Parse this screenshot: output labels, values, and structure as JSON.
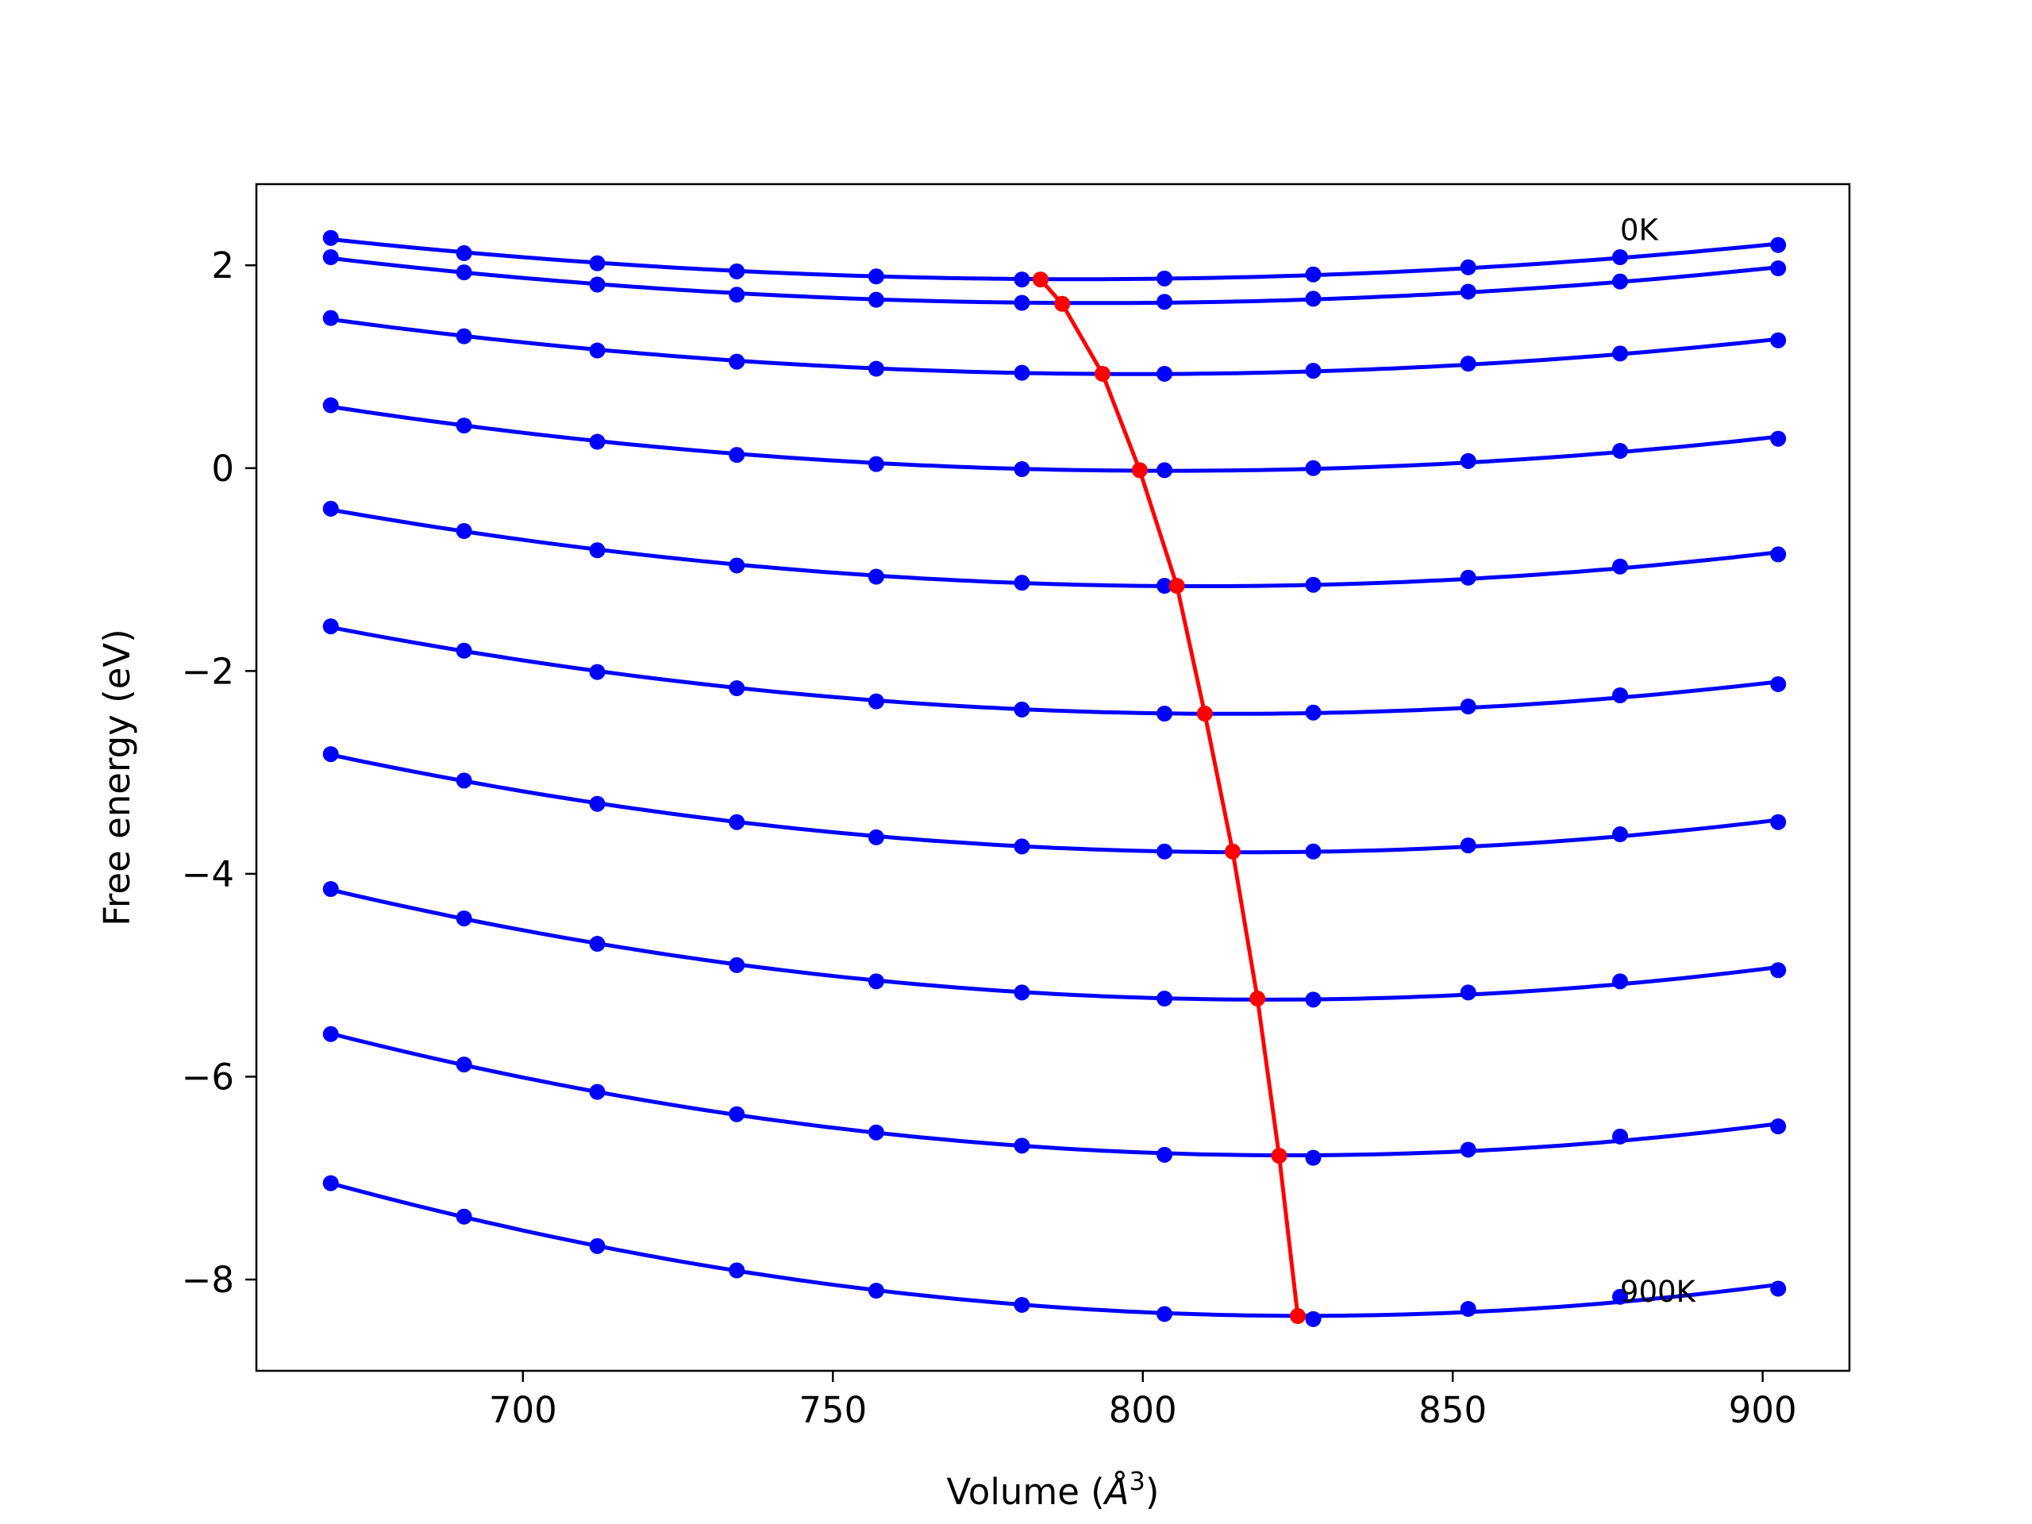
{
  "chart_data": {
    "type": "line",
    "xlabel": "Volume (",
    "xlabel_unit": "Å",
    "xlabel_sup": "3",
    "xlabel_close": ")",
    "ylabel": "Free energy (eV)",
    "xlim": [
      657,
      914
    ],
    "ylim": [
      -8.9,
      2.8
    ],
    "xticks": [
      700,
      750,
      800,
      850,
      900
    ],
    "xtick_labels": [
      "700",
      "750",
      "800",
      "850",
      "900"
    ],
    "yticks": [
      2,
      0,
      -2,
      -4,
      -6,
      -8
    ],
    "ytick_labels": [
      "2",
      "0",
      "−2",
      "−4",
      "−6",
      "−8"
    ],
    "grid": false,
    "annotations": [
      {
        "text": "0K",
        "x": 877,
        "y": 2.25
      },
      {
        "text": "900K",
        "x": 877,
        "y": -8.22
      }
    ],
    "volumes": [
      669.0,
      690.5,
      712.0,
      734.5,
      757.0,
      780.5,
      803.5,
      827.5,
      852.5,
      877.0,
      902.5
    ],
    "series": [
      {
        "color": "#0000ff",
        "y": [
          2.27,
          2.12,
          2.02,
          1.94,
          1.89,
          1.86,
          1.87,
          1.91,
          1.98,
          2.08,
          2.2
        ]
      },
      {
        "color": "#0000ff",
        "y": [
          2.08,
          1.93,
          1.81,
          1.71,
          1.66,
          1.63,
          1.64,
          1.67,
          1.74,
          1.84,
          1.97
        ]
      },
      {
        "color": "#0000ff",
        "y": [
          1.48,
          1.3,
          1.16,
          1.05,
          0.98,
          0.94,
          0.93,
          0.96,
          1.03,
          1.13,
          1.26
        ]
      },
      {
        "color": "#0000ff",
        "y": [
          0.62,
          0.42,
          0.26,
          0.13,
          0.04,
          -0.01,
          -0.02,
          0.0,
          0.07,
          0.17,
          0.29
        ]
      },
      {
        "color": "#0000ff",
        "y": [
          -0.4,
          -0.62,
          -0.81,
          -0.96,
          -1.07,
          -1.13,
          -1.16,
          -1.15,
          -1.08,
          -0.97,
          -0.85
        ]
      },
      {
        "color": "#0000ff",
        "y": [
          -1.56,
          -1.8,
          -2.01,
          -2.17,
          -2.3,
          -2.38,
          -2.42,
          -2.41,
          -2.35,
          -2.24,
          -2.13
        ]
      },
      {
        "color": "#0000ff",
        "y": [
          -2.82,
          -3.08,
          -3.31,
          -3.49,
          -3.64,
          -3.73,
          -3.78,
          -3.78,
          -3.72,
          -3.61,
          -3.49
        ]
      },
      {
        "color": "#0000ff",
        "y": [
          -4.15,
          -4.44,
          -4.69,
          -4.9,
          -5.06,
          -5.17,
          -5.23,
          -5.24,
          -5.17,
          -5.06,
          -4.95
        ]
      },
      {
        "color": "#0000ff",
        "y": [
          -5.58,
          -5.88,
          -6.15,
          -6.37,
          -6.55,
          -6.68,
          -6.77,
          -6.8,
          -6.72,
          -6.59,
          -6.49
        ]
      },
      {
        "color": "#0000ff",
        "y": [
          -7.05,
          -7.38,
          -7.67,
          -7.91,
          -8.11,
          -8.25,
          -8.34,
          -8.39,
          -8.29,
          -8.17,
          -8.09
        ]
      }
    ],
    "minima_series": {
      "color": "#ff0000",
      "x": [
        783.5,
        787.0,
        793.5,
        799.5,
        805.5,
        810.0,
        814.5,
        818.5,
        822.0,
        825.0
      ],
      "y": [
        1.86,
        1.62,
        0.93,
        -0.02,
        -1.16,
        -2.42,
        -3.78,
        -5.23,
        -6.78,
        -8.36
      ]
    }
  }
}
